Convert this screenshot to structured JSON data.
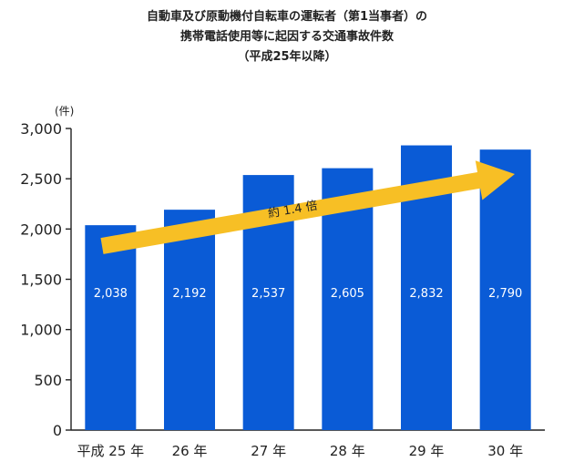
{
  "title_lines": [
    "自動車及び原動機付自転車の運転者（第1当事者）の",
    "携帯電話使用等に起因する交通事故件数",
    "（平成25年以降）"
  ],
  "chart_data": {
    "type": "bar",
    "categories": [
      "平成 25 年",
      "26 年",
      "27 年",
      "28 年",
      "29 年",
      "30 年"
    ],
    "values": [
      2038,
      2192,
      2537,
      2605,
      2832,
      2790
    ],
    "data_labels": [
      "2,038",
      "2,192",
      "2,537",
      "2,605",
      "2,832",
      "2,790"
    ],
    "y_unit": "(件)",
    "ylim": [
      0,
      3000
    ],
    "yticks": [
      0,
      500,
      1000,
      1500,
      2000,
      2500,
      3000
    ],
    "ytick_labels": [
      "0",
      "500",
      "1,000",
      "1,500",
      "2,000",
      "2,500",
      "3,000"
    ],
    "grid": false,
    "annotation": "約 1.4 倍",
    "colors": {
      "bar": "#0a5bd6",
      "arrow": "#f7bf25",
      "label": "#ffffff",
      "axis": "#222222"
    }
  }
}
